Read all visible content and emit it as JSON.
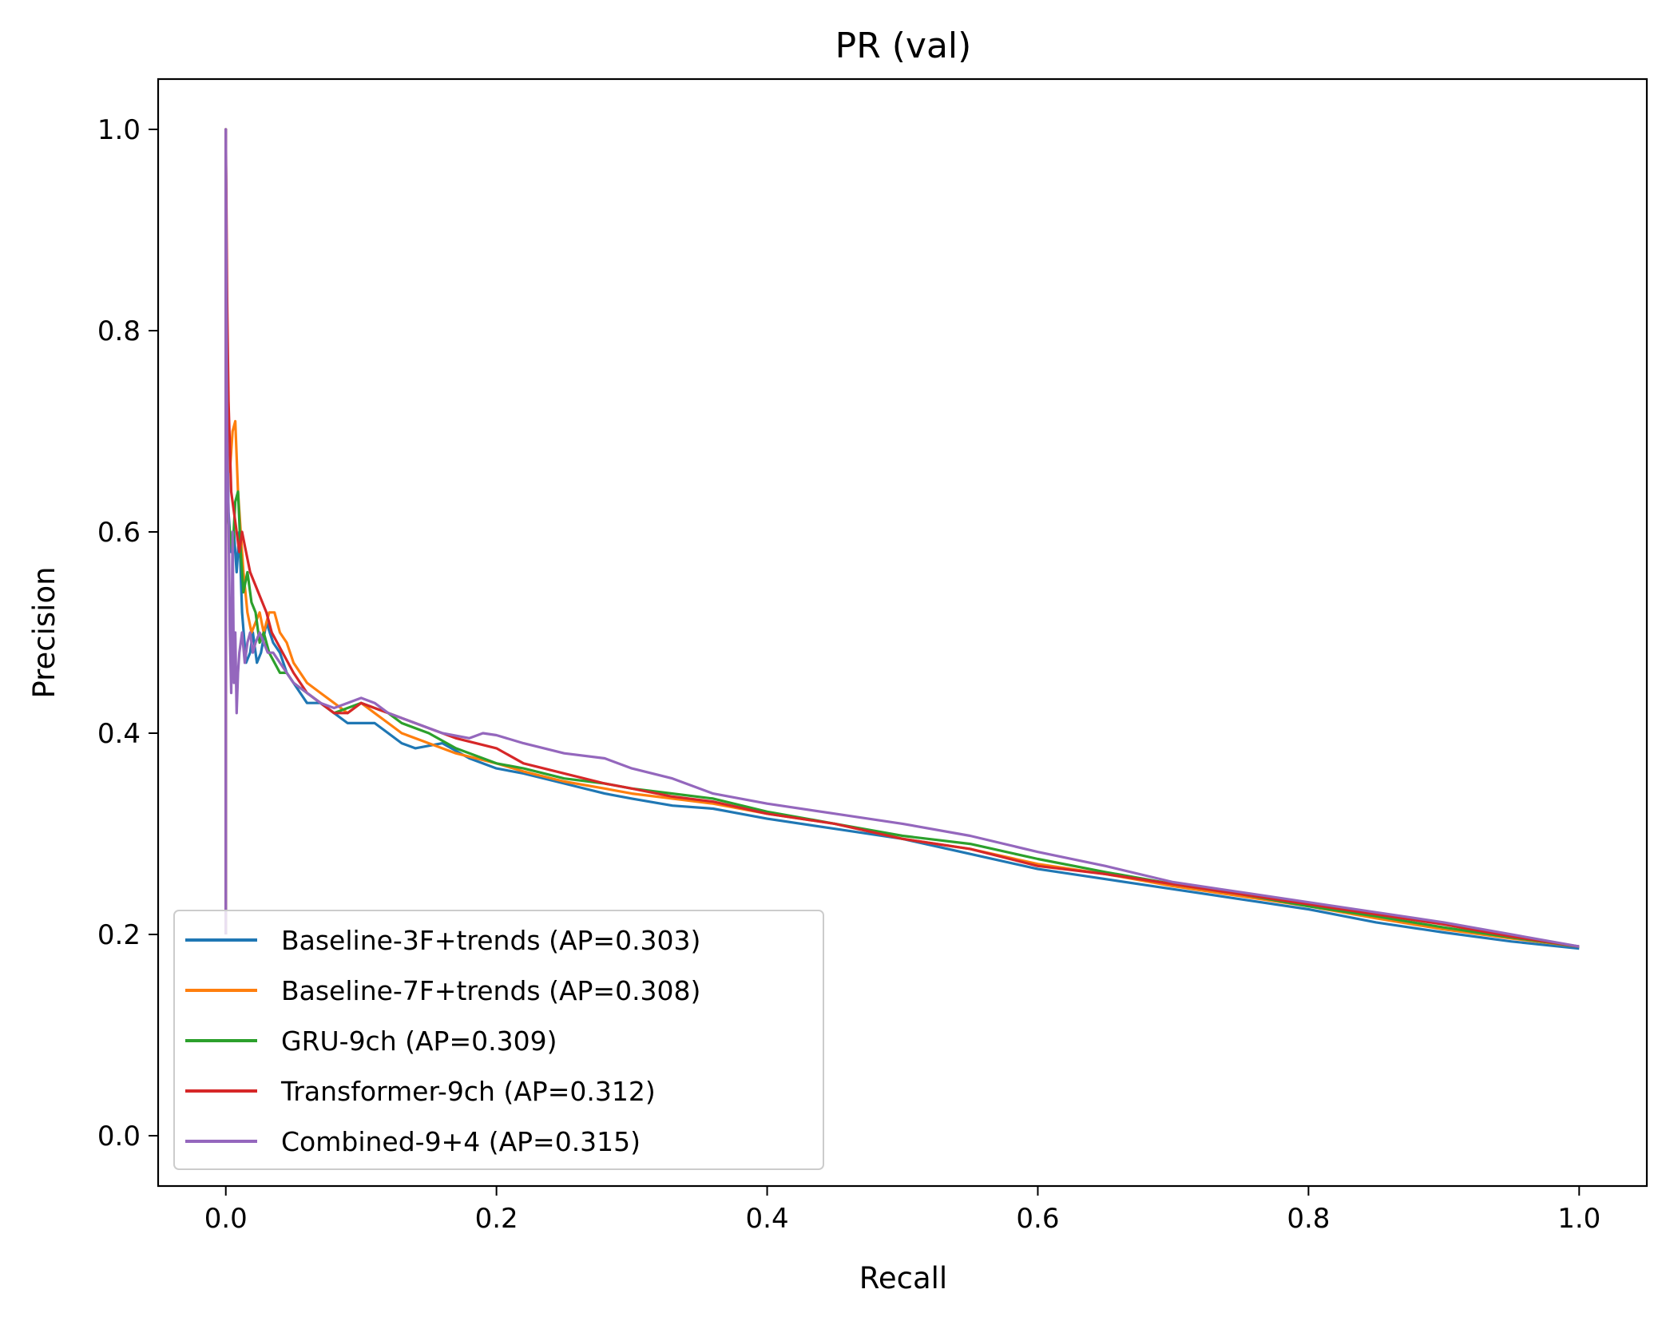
{
  "chart_data": {
    "type": "line",
    "title": "PR (val)",
    "xlabel": "Recall",
    "ylabel": "Precision",
    "xlim": [
      -0.05,
      1.05
    ],
    "ylim": [
      -0.05,
      1.05
    ],
    "xticks": [
      0.0,
      0.2,
      0.4,
      0.6,
      0.8,
      1.0
    ],
    "xtick_labels": [
      "0.0",
      "0.2",
      "0.4",
      "0.6",
      "0.8",
      "1.0"
    ],
    "yticks": [
      0.0,
      0.2,
      0.4,
      0.6,
      0.8,
      1.0
    ],
    "ytick_labels": [
      "0.0",
      "0.2",
      "0.4",
      "0.6",
      "0.8",
      "1.0"
    ],
    "grid": false,
    "legend_position": "lower-left",
    "series": [
      {
        "name": "Baseline-3F+trends (AP=0.303)",
        "color": "#1f77b4",
        "x": [
          0,
          0,
          0.001,
          0.002,
          0.004,
          0.006,
          0.008,
          0.01,
          0.012,
          0.015,
          0.018,
          0.02,
          0.023,
          0.026,
          0.03,
          0.035,
          0.04,
          0.045,
          0.05,
          0.06,
          0.07,
          0.08,
          0.09,
          0.1,
          0.11,
          0.12,
          0.13,
          0.14,
          0.16,
          0.18,
          0.2,
          0.22,
          0.25,
          0.28,
          0.3,
          0.33,
          0.36,
          0.4,
          0.45,
          0.5,
          0.55,
          0.6,
          0.65,
          0.7,
          0.75,
          0.8,
          0.85,
          0.9,
          0.95,
          1.0
        ],
        "y": [
          0.2,
          1.0,
          0.72,
          0.62,
          0.58,
          0.6,
          0.56,
          0.6,
          0.52,
          0.47,
          0.48,
          0.5,
          0.47,
          0.48,
          0.51,
          0.49,
          0.48,
          0.46,
          0.45,
          0.43,
          0.43,
          0.42,
          0.41,
          0.41,
          0.41,
          0.4,
          0.39,
          0.385,
          0.39,
          0.375,
          0.365,
          0.36,
          0.35,
          0.34,
          0.335,
          0.328,
          0.325,
          0.315,
          0.305,
          0.295,
          0.28,
          0.265,
          0.255,
          0.245,
          0.235,
          0.225,
          0.212,
          0.202,
          0.193,
          0.186
        ]
      },
      {
        "name": "Baseline-7F+trends (AP=0.308)",
        "color": "#ff7f0e",
        "x": [
          0,
          0,
          0.001,
          0.003,
          0.005,
          0.007,
          0.009,
          0.011,
          0.013,
          0.016,
          0.019,
          0.022,
          0.025,
          0.028,
          0.032,
          0.036,
          0.04,
          0.045,
          0.05,
          0.06,
          0.07,
          0.08,
          0.09,
          0.1,
          0.11,
          0.12,
          0.13,
          0.15,
          0.17,
          0.2,
          0.22,
          0.25,
          0.28,
          0.3,
          0.33,
          0.36,
          0.4,
          0.45,
          0.5,
          0.55,
          0.6,
          0.65,
          0.7,
          0.75,
          0.8,
          0.85,
          0.9,
          0.95,
          1.0
        ],
        "y": [
          0.2,
          1.0,
          0.7,
          0.66,
          0.7,
          0.71,
          0.64,
          0.6,
          0.56,
          0.52,
          0.5,
          0.51,
          0.52,
          0.5,
          0.52,
          0.52,
          0.5,
          0.49,
          0.47,
          0.45,
          0.44,
          0.43,
          0.42,
          0.43,
          0.42,
          0.41,
          0.4,
          0.39,
          0.38,
          0.37,
          0.362,
          0.352,
          0.345,
          0.34,
          0.335,
          0.33,
          0.32,
          0.31,
          0.295,
          0.285,
          0.27,
          0.26,
          0.248,
          0.238,
          0.228,
          0.216,
          0.205,
          0.196,
          0.188
        ]
      },
      {
        "name": "GRU-9ch (AP=0.309)",
        "color": "#2ca02c",
        "x": [
          0,
          0,
          0.001,
          0.003,
          0.005,
          0.007,
          0.009,
          0.011,
          0.013,
          0.016,
          0.019,
          0.022,
          0.025,
          0.028,
          0.032,
          0.036,
          0.04,
          0.045,
          0.05,
          0.06,
          0.07,
          0.08,
          0.09,
          0.1,
          0.11,
          0.12,
          0.13,
          0.15,
          0.17,
          0.2,
          0.22,
          0.25,
          0.28,
          0.3,
          0.33,
          0.36,
          0.4,
          0.45,
          0.5,
          0.55,
          0.6,
          0.65,
          0.7,
          0.75,
          0.8,
          0.85,
          0.9,
          0.95,
          1.0
        ],
        "y": [
          0.2,
          1.0,
          0.62,
          0.6,
          0.58,
          0.63,
          0.64,
          0.58,
          0.54,
          0.56,
          0.53,
          0.52,
          0.49,
          0.5,
          0.48,
          0.47,
          0.46,
          0.46,
          0.45,
          0.44,
          0.43,
          0.42,
          0.425,
          0.43,
          0.425,
          0.42,
          0.41,
          0.4,
          0.385,
          0.37,
          0.365,
          0.355,
          0.35,
          0.345,
          0.34,
          0.335,
          0.322,
          0.31,
          0.298,
          0.29,
          0.275,
          0.262,
          0.25,
          0.24,
          0.228,
          0.218,
          0.207,
          0.197,
          0.188
        ]
      },
      {
        "name": "Transformer-9ch (AP=0.312)",
        "color": "#d62728",
        "x": [
          0,
          0,
          0.001,
          0.002,
          0.004,
          0.006,
          0.008,
          0.01,
          0.012,
          0.015,
          0.018,
          0.021,
          0.024,
          0.027,
          0.03,
          0.034,
          0.038,
          0.042,
          0.046,
          0.05,
          0.06,
          0.07,
          0.08,
          0.09,
          0.1,
          0.11,
          0.12,
          0.13,
          0.15,
          0.17,
          0.2,
          0.22,
          0.25,
          0.28,
          0.3,
          0.33,
          0.36,
          0.4,
          0.45,
          0.5,
          0.55,
          0.6,
          0.65,
          0.7,
          0.75,
          0.8,
          0.85,
          0.9,
          0.95,
          1.0
        ],
        "y": [
          0.2,
          1.0,
          0.83,
          0.73,
          0.64,
          0.62,
          0.6,
          0.58,
          0.6,
          0.58,
          0.56,
          0.55,
          0.54,
          0.53,
          0.52,
          0.5,
          0.49,
          0.48,
          0.47,
          0.46,
          0.44,
          0.43,
          0.42,
          0.42,
          0.43,
          0.425,
          0.42,
          0.415,
          0.405,
          0.395,
          0.385,
          0.37,
          0.36,
          0.35,
          0.345,
          0.337,
          0.332,
          0.32,
          0.31,
          0.295,
          0.285,
          0.268,
          0.26,
          0.25,
          0.24,
          0.23,
          0.22,
          0.21,
          0.198,
          0.188
        ]
      },
      {
        "name": "Combined-9+4 (AP=0.315)",
        "color": "#9467bd",
        "x": [
          0,
          0,
          0.001,
          0.002,
          0.003,
          0.004,
          0.005,
          0.006,
          0.007,
          0.008,
          0.009,
          0.01,
          0.012,
          0.014,
          0.016,
          0.018,
          0.02,
          0.022,
          0.025,
          0.028,
          0.031,
          0.035,
          0.04,
          0.045,
          0.05,
          0.06,
          0.07,
          0.08,
          0.09,
          0.1,
          0.11,
          0.12,
          0.14,
          0.16,
          0.18,
          0.19,
          0.2,
          0.22,
          0.25,
          0.28,
          0.3,
          0.33,
          0.36,
          0.4,
          0.45,
          0.5,
          0.55,
          0.6,
          0.65,
          0.7,
          0.75,
          0.8,
          0.85,
          0.9,
          0.95,
          1.0
        ],
        "y": [
          0.2,
          1.0,
          0.7,
          0.62,
          0.5,
          0.44,
          0.6,
          0.45,
          0.5,
          0.42,
          0.46,
          0.48,
          0.5,
          0.47,
          0.49,
          0.5,
          0.48,
          0.49,
          0.5,
          0.49,
          0.48,
          0.48,
          0.47,
          0.46,
          0.45,
          0.44,
          0.43,
          0.425,
          0.43,
          0.435,
          0.43,
          0.42,
          0.41,
          0.4,
          0.395,
          0.4,
          0.398,
          0.39,
          0.38,
          0.375,
          0.365,
          0.355,
          0.34,
          0.33,
          0.32,
          0.31,
          0.298,
          0.282,
          0.268,
          0.252,
          0.242,
          0.232,
          0.222,
          0.212,
          0.2,
          0.188
        ]
      }
    ]
  }
}
